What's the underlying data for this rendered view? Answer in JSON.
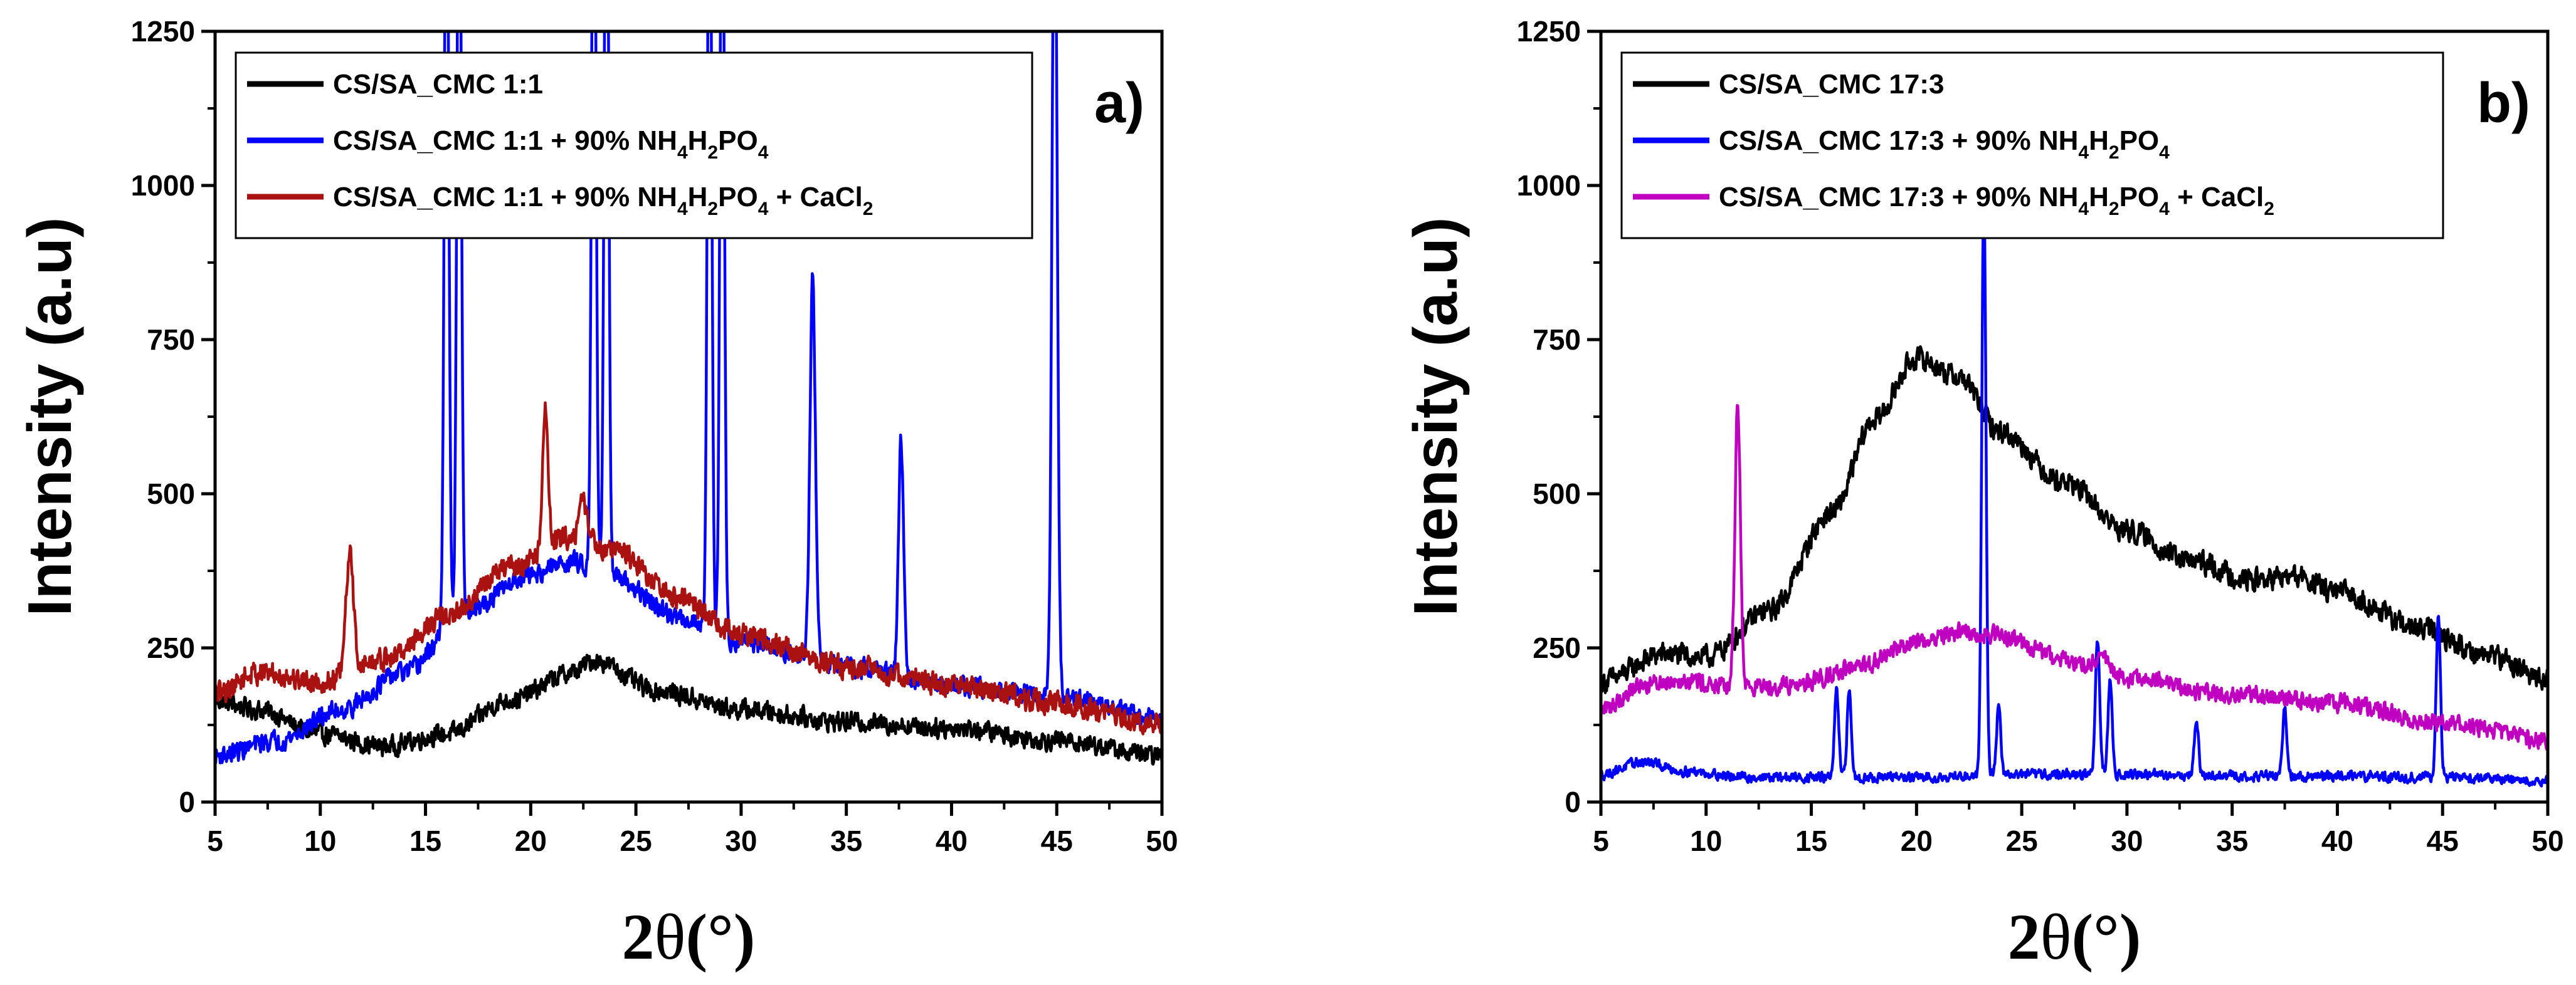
{
  "chart_data": [
    {
      "type": "line",
      "panel_label": "a)",
      "xlabel_main": "2",
      "xlabel_theta": "θ",
      "xlabel_unit": "(°)",
      "ylabel": "Intensity (a.u)",
      "xlim": [
        5,
        50
      ],
      "ylim": [
        0,
        1250
      ],
      "x_ticks": [
        "5",
        "10",
        "15",
        "20",
        "25",
        "30",
        "35",
        "40",
        "45",
        "50"
      ],
      "y_ticks": [
        "0",
        "250",
        "500",
        "750",
        "1000",
        "1250"
      ],
      "legend_position": "top-left",
      "series": [
        {
          "name": "CS/SA_CMC 1:1",
          "legend_parts": [
            {
              "t": "CS/SA_CMC 1:1"
            }
          ],
          "color": "#000000",
          "baseline": [
            [
              5,
              165
            ],
            [
              7,
              150
            ],
            [
              10,
              110
            ],
            [
              13,
              90
            ],
            [
              16,
              110
            ],
            [
              19,
              165
            ],
            [
              22,
              210
            ],
            [
              23,
              230
            ],
            [
              26,
              180
            ],
            [
              30,
              150
            ],
            [
              35,
              130
            ],
            [
              40,
              120
            ],
            [
              45,
              100
            ],
            [
              50,
              75
            ]
          ],
          "noise": 14,
          "peaks": []
        },
        {
          "name": "CS/SA_CMC 1:1 + 90% NH4H2PO4",
          "legend_parts": [
            {
              "t": "CS/SA_CMC 1:1 + 90% NH"
            },
            {
              "t": "4",
              "sub": true
            },
            {
              "t": "H"
            },
            {
              "t": "2",
              "sub": true
            },
            {
              "t": "PO"
            },
            {
              "t": "4",
              "sub": true
            }
          ],
          "color": "#0000ff",
          "baseline": [
            [
              5,
              75
            ],
            [
              8,
              100
            ],
            [
              11,
              150
            ],
            [
              14,
              210
            ],
            [
              17,
              310
            ],
            [
              20,
              370
            ],
            [
              22,
              390
            ],
            [
              24,
              360
            ],
            [
              27,
              300
            ],
            [
              30,
              260
            ],
            [
              35,
              220
            ],
            [
              40,
              190
            ],
            [
              45,
              170
            ],
            [
              50,
              135
            ]
          ],
          "noise": 14,
          "peaks": [
            [
              16.0,
              1400,
              0.1
            ],
            [
              16.6,
              1400,
              0.1
            ],
            [
              23.0,
              1400,
              0.1
            ],
            [
              23.6,
              1400,
              0.1
            ],
            [
              28.5,
              1400,
              0.1
            ],
            [
              29.1,
              1400,
              0.1
            ],
            [
              33.4,
              620,
              0.13
            ],
            [
              37.6,
              380,
              0.12
            ],
            [
              44.9,
              1400,
              0.12
            ]
          ]
        },
        {
          "name": "CS/SA_CMC 1:1 + 90% NH4H2PO4 + CaCl2",
          "legend_parts": [
            {
              "t": "CS/SA_CMC 1:1 + 90% NH"
            },
            {
              "t": "4",
              "sub": true
            },
            {
              "t": "H"
            },
            {
              "t": "2",
              "sub": true
            },
            {
              "t": "PO"
            },
            {
              "t": "4",
              "sub": true
            },
            {
              "t": " + CaCl"
            },
            {
              "t": "2",
              "sub": true
            }
          ],
          "color": "#aa1111",
          "baseline": [
            [
              5,
              175
            ],
            [
              7,
              210
            ],
            [
              10,
              195
            ],
            [
              13,
              230
            ],
            [
              16,
              300
            ],
            [
              19,
              380
            ],
            [
              22,
              430
            ],
            [
              24,
              410
            ],
            [
              27,
              330
            ],
            [
              30,
              270
            ],
            [
              35,
              220
            ],
            [
              40,
              190
            ],
            [
              45,
              160
            ],
            [
              50,
              125
            ]
          ],
          "noise": 16,
          "peaks": [
            [
              11.4,
              190,
              0.18
            ],
            [
              20.7,
              230,
              0.13
            ],
            [
              22.5,
              60,
              0.2
            ]
          ]
        }
      ]
    },
    {
      "type": "line",
      "panel_label": "b)",
      "xlabel_main": "2",
      "xlabel_theta": "θ",
      "xlabel_unit": "(°)",
      "ylabel": "Intensity (a.u)",
      "xlim": [
        5,
        50
      ],
      "ylim": [
        0,
        1250
      ],
      "x_ticks": [
        "5",
        "10",
        "15",
        "20",
        "25",
        "30",
        "35",
        "40",
        "45",
        "50"
      ],
      "y_ticks": [
        "0",
        "250",
        "500",
        "750",
        "1000",
        "1250"
      ],
      "legend_position": "top-left",
      "series": [
        {
          "name": "CS/SA_CMC 17:3",
          "legend_parts": [
            {
              "t": "CS/SA_CMC 17:3"
            }
          ],
          "color": "#000000",
          "baseline": [
            [
              5,
              195
            ],
            [
              8,
              240
            ],
            [
              10,
              235
            ],
            [
              13,
              310
            ],
            [
              16,
              470
            ],
            [
              18,
              620
            ],
            [
              20,
              720
            ],
            [
              22,
              690
            ],
            [
              24,
              600
            ],
            [
              27,
              520
            ],
            [
              30,
              440
            ],
            [
              33,
              390
            ],
            [
              36,
              360
            ],
            [
              38,
              365
            ],
            [
              40,
              340
            ],
            [
              44,
              280
            ],
            [
              47,
              240
            ],
            [
              50,
              200
            ]
          ],
          "noise": 16,
          "peaks": []
        },
        {
          "name": "CS/SA_CMC 17:3 + 90% NH4H2PO4",
          "legend_parts": [
            {
              "t": "CS/SA_CMC 17:3 + 90% NH"
            },
            {
              "t": "4",
              "sub": true
            },
            {
              "t": "H"
            },
            {
              "t": "2",
              "sub": true
            },
            {
              "t": "PO"
            },
            {
              "t": "4",
              "sub": true
            }
          ],
          "color": "#0000ff",
          "baseline": [
            [
              5,
              45
            ],
            [
              7,
              65
            ],
            [
              9,
              50
            ],
            [
              12,
              40
            ],
            [
              15,
              40
            ],
            [
              20,
              40
            ],
            [
              25,
              45
            ],
            [
              30,
              45
            ],
            [
              35,
              42
            ],
            [
              40,
              42
            ],
            [
              45,
              40
            ],
            [
              50,
              35
            ]
          ],
          "noise": 7,
          "peaks": [
            [
              16.2,
              140,
              0.1
            ],
            [
              16.8,
              140,
              0.1
            ],
            [
              23.2,
              950,
              0.1
            ],
            [
              23.9,
              110,
              0.1
            ],
            [
              28.6,
              220,
              0.1
            ],
            [
              29.2,
              150,
              0.1
            ],
            [
              33.3,
              90,
              0.1
            ],
            [
              37.5,
              110,
              0.1
            ],
            [
              44.8,
              270,
              0.1
            ]
          ]
        },
        {
          "name": "CS/SA_CMC 17:3 + 90% NH4H2PO4 + CaCl2",
          "legend_parts": [
            {
              "t": "CS/SA_CMC 17:3 + 90% NH"
            },
            {
              "t": "4",
              "sub": true
            },
            {
              "t": "H"
            },
            {
              "t": "2",
              "sub": true
            },
            {
              "t": "PO"
            },
            {
              "t": "4",
              "sub": true
            },
            {
              "t": " + CaCl"
            },
            {
              "t": "2",
              "sub": true
            }
          ],
          "color": "#c000c0",
          "baseline": [
            [
              5,
              150
            ],
            [
              7,
              190
            ],
            [
              9,
              200
            ],
            [
              11,
              185
            ],
            [
              14,
              190
            ],
            [
              17,
              215
            ],
            [
              20,
              260
            ],
            [
              22,
              275
            ],
            [
              24,
              270
            ],
            [
              27,
              230
            ],
            [
              30,
              200
            ],
            [
              35,
              175
            ],
            [
              40,
              160
            ],
            [
              45,
              130
            ],
            [
              50,
              100
            ]
          ],
          "noise": 13,
          "peaks": [
            [
              11.5,
              460,
              0.13
            ],
            [
              28.8,
              30,
              0.3
            ]
          ]
        }
      ]
    }
  ]
}
